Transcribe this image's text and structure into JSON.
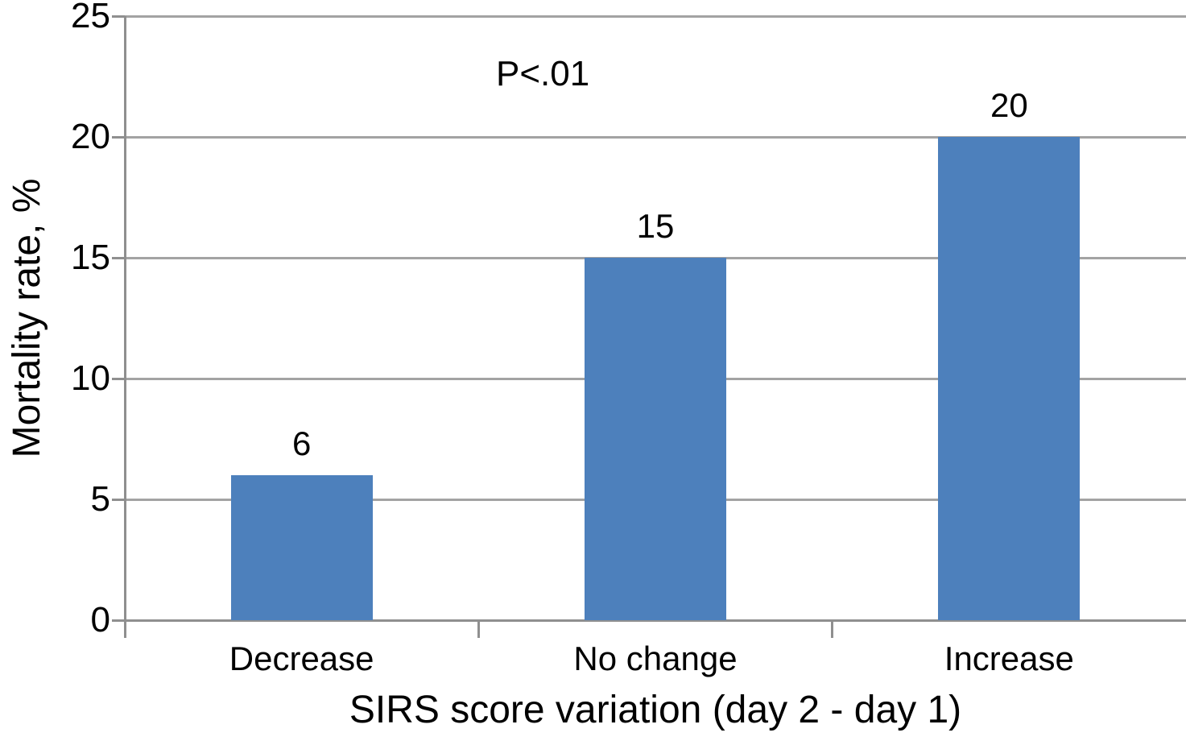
{
  "figure": {
    "background_color": "#ffffff",
    "text_color": "#000000"
  },
  "chart_data": {
    "type": "bar",
    "categories": [
      "Decrease",
      "No change",
      "Increase"
    ],
    "values": [
      6,
      15,
      20
    ],
    "data_labels": [
      "6",
      "15",
      "20"
    ],
    "title": "",
    "xlabel": "SIRS score variation (day 2 - day 1)",
    "ylabel": "Mortality rate, %",
    "ylim": [
      0,
      25
    ],
    "yticks": [
      0,
      5,
      10,
      15,
      20,
      25
    ],
    "ytick_labels": [
      "0",
      "5",
      "10",
      "15",
      "20",
      "25"
    ],
    "annotation": "P<.01",
    "legend": "none",
    "grid": "horizontal",
    "bar_color": "#4d80bc",
    "gridline_color": "#a3a3a3",
    "axis_color": "#8f8f8f"
  }
}
